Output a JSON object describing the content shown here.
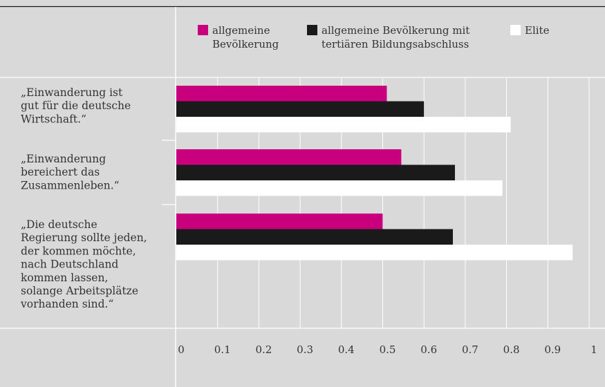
{
  "chart_data": {
    "type": "bar",
    "orientation": "horizontal",
    "title": "",
    "xlabel": "",
    "ylabel": "",
    "xlim": [
      0,
      1
    ],
    "grid": true,
    "legend_position": "top",
    "categories": [
      [
        "„Einwanderung ist",
        "gut für die deutsche",
        "Wirtschaft.“"
      ],
      [
        "„Einwanderung",
        "bereichert das",
        "Zusammenleben.“"
      ],
      [
        "„Die deutsche",
        "Regierung sollte jeden,",
        "der kommen möchte,",
        "nach Deutschland",
        "kommen lassen,",
        "solange Arbeitsplätze",
        "vorhanden sind.“"
      ]
    ],
    "series": [
      {
        "name": [
          "allgemeine",
          "Bevölkerung"
        ],
        "color": "#c8007d",
        "values": [
          0.51,
          0.545,
          0.5
        ]
      },
      {
        "name": [
          "allgemeine Bevölkerung mit",
          "tertiären Bildungsabschluss"
        ],
        "color": "#1a1a1a",
        "values": [
          0.6,
          0.675,
          0.67
        ]
      },
      {
        "name": [
          "Elite"
        ],
        "color": "#ffffff",
        "values": [
          0.81,
          0.79,
          0.96
        ]
      }
    ],
    "ticks": [
      "0",
      "0.1",
      "0.2",
      "0.3",
      "0.4",
      "0.5",
      "0.6",
      "0.7",
      "0.8",
      "0.9",
      "1"
    ]
  }
}
